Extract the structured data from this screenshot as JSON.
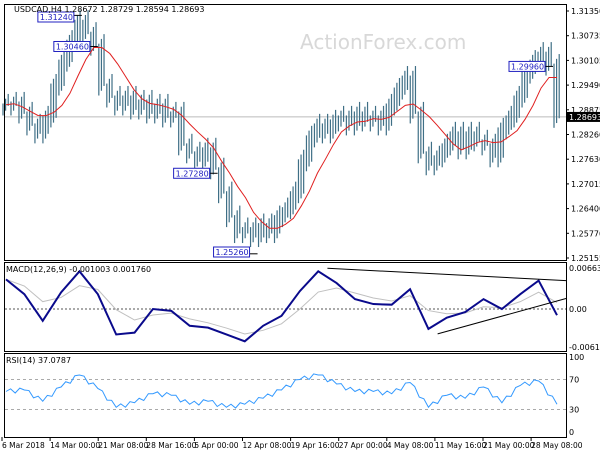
{
  "chart_data": [
    {
      "type": "bar",
      "symbol_header": "USDCAD,H4  1.28672 1.28729 1.28594 1.28693",
      "watermark": "ActionForex.com",
      "ylim": [
        1.25155,
        1.3135
      ],
      "y_ticks": [
        "1.31350",
        "1.30735",
        "1.30105",
        "1.29490",
        "1.28875",
        "1.28260",
        "1.27630",
        "1.27015",
        "1.26400",
        "1.25770",
        "1.25155"
      ],
      "current_price": "1.28693",
      "close": [
        1.29,
        1.2905,
        1.288,
        1.285,
        1.283,
        1.287,
        1.295,
        1.301,
        1.306,
        1.311,
        1.308,
        1.305,
        1.295,
        1.292,
        1.29,
        1.292,
        1.289,
        1.291,
        1.288,
        1.29,
        1.287,
        1.288,
        1.28,
        1.278,
        1.276,
        1.279,
        1.274,
        1.268,
        1.262,
        1.258,
        1.259,
        1.257,
        1.26,
        1.258,
        1.262,
        1.264,
        1.268,
        1.276,
        1.282,
        1.285,
        1.283,
        1.286,
        1.287,
        1.285,
        1.288,
        1.286,
        1.287,
        1.285,
        1.29,
        1.294,
        1.297,
        1.288,
        1.278,
        1.275,
        1.277,
        1.28,
        1.283,
        1.279,
        1.283,
        1.281,
        1.28,
        1.277,
        1.284,
        1.287,
        1.292,
        1.298,
        1.301,
        1.303,
        1.3,
        1.2869
      ],
      "annotations": [
        {
          "label": "1.31240",
          "price": 1.3124
        },
        {
          "label": "1.25260",
          "price": 1.2526
        },
        {
          "label": "1.29960",
          "price": 1.2996
        },
        {
          "label": "1.27280",
          "price": 1.2728
        },
        {
          "label": "1.30460",
          "price": 1.3046
        }
      ],
      "moving_average_color": "#e02020",
      "bar_color": "#3f6f86"
    },
    {
      "type": "line",
      "title": "MACD(12,26,9) -0.001003 0.001760",
      "ylim": [
        -0.006114,
        0.006639
      ],
      "y_ticks": [
        "0.006639",
        "0.00",
        "-0.006114"
      ],
      "macd": [
        0.0048,
        0.0024,
        -0.0019,
        0.0027,
        0.0061,
        0.0024,
        -0.0041,
        -0.0038,
        0.0,
        -0.0003,
        -0.0027,
        -0.003,
        -0.0041,
        -0.0052,
        -0.0027,
        -0.0011,
        0.0029,
        0.0061,
        0.0042,
        0.0016,
        0.0008,
        0.0007,
        0.0032,
        -0.0032,
        -0.0014,
        -0.0005,
        0.0016,
        0.0,
        0.0024,
        0.0046,
        -0.001
      ],
      "trendlines": [
        {
          "from": [
            17.5,
            0.0066
          ],
          "to": [
            31.5,
            0.0046
          ]
        },
        {
          "from": [
            23.5,
            -0.004
          ],
          "to": [
            31.5,
            0.0017
          ]
        }
      ],
      "macd_color": "#0a0a8c",
      "signal_color": "#c0c0c0"
    },
    {
      "type": "line",
      "title": "RSI(14) 37.0787",
      "ylim": [
        0,
        100
      ],
      "y_ticks": [
        "100",
        "70",
        "30",
        "0"
      ],
      "levels": [
        70,
        30
      ],
      "rsi": [
        54,
        56,
        41,
        60,
        76,
        58,
        33,
        39,
        51,
        49,
        37,
        41,
        33,
        37,
        45,
        56,
        70,
        76,
        64,
        54,
        54,
        51,
        66,
        33,
        49,
        45,
        60,
        39,
        62,
        68,
        37
      ],
      "rsi_color": "#3399ff"
    }
  ],
  "x_labels": [
    "6 Mar 2018",
    "14 Mar 00:00",
    "21 Mar 08:00",
    "28 Mar 16:00",
    "5 Apr 00:00",
    "12 Apr 08:00",
    "19 Apr 16:00",
    "27 Apr 00:00",
    "4 May 08:00",
    "11 May 16:00",
    "21 May 00:00",
    "28 May 08:00"
  ]
}
